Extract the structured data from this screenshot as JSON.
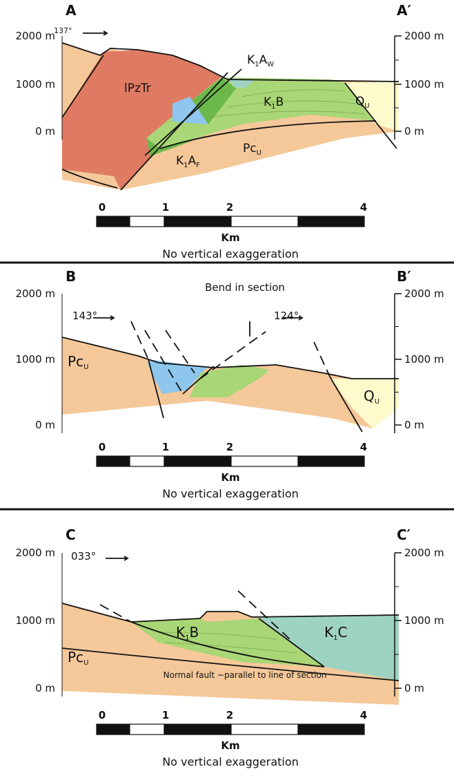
{
  "panels": [
    {
      "label": "A",
      "label_end": "A′",
      "elevations": [
        "2000 m",
        "1000 m",
        "0 m"
      ],
      "azimuths": [
        "137°"
      ],
      "units": [
        {
          "parts": [
            {
              "text": "lPzTr"
            }
          ]
        },
        {
          "parts": [
            {
              "text": "K"
            },
            {
              "text": "1",
              "sub": true
            },
            {
              "text": "A"
            },
            {
              "text": "W",
              "sub": true
            }
          ]
        },
        {
          "parts": [
            {
              "text": "K"
            },
            {
              "text": "1",
              "sub": true
            },
            {
              "text": "B"
            }
          ]
        },
        {
          "parts": [
            {
              "text": "Q"
            },
            {
              "text": "U",
              "sub": true
            }
          ]
        },
        {
          "parts": [
            {
              "text": "Pc"
            },
            {
              "text": "U",
              "sub": true
            }
          ]
        },
        {
          "parts": [
            {
              "text": "K"
            },
            {
              "text": "1",
              "sub": true
            },
            {
              "text": "A"
            },
            {
              "text": "F",
              "sub": true
            }
          ]
        }
      ],
      "scale": {
        "ticks": [
          "0",
          "1",
          "2",
          "4"
        ],
        "unit": "Km",
        "note": "No vertical exaggeration"
      }
    },
    {
      "label": "B",
      "label_end": "B′",
      "elevations": [
        "2000 m",
        "1000 m",
        "0 m"
      ],
      "azimuths": [
        "143°",
        "124°"
      ],
      "annotation": "Bend in section",
      "units": [
        {
          "parts": [
            {
              "text": "Pc"
            },
            {
              "text": "U",
              "sub": true
            }
          ]
        },
        {
          "parts": [
            {
              "text": "Q"
            },
            {
              "text": "U",
              "sub": true
            }
          ]
        }
      ],
      "scale": {
        "ticks": [
          "0",
          "1",
          "2",
          "4"
        ],
        "unit": "Km",
        "note": "No vertical exaggeration"
      }
    },
    {
      "label": "C",
      "label_end": "C′",
      "elevations": [
        "2000 m",
        "1000 m",
        "0 m"
      ],
      "azimuths": [
        "033°"
      ],
      "annotation": "Normal fault ~parallel to line of section",
      "units": [
        {
          "parts": [
            {
              "text": "Pc"
            },
            {
              "text": "U",
              "sub": true
            }
          ]
        },
        {
          "parts": [
            {
              "text": "K"
            },
            {
              "text": "1",
              "sub": true
            },
            {
              "text": "B"
            }
          ]
        },
        {
          "parts": [
            {
              "text": "K"
            },
            {
              "text": "1",
              "sub": true
            },
            {
              "text": "C"
            }
          ]
        }
      ],
      "scale": {
        "ticks": [
          "0",
          "1",
          "2",
          "4"
        ],
        "unit": "Km",
        "note": "No vertical exaggeration"
      }
    }
  ]
}
